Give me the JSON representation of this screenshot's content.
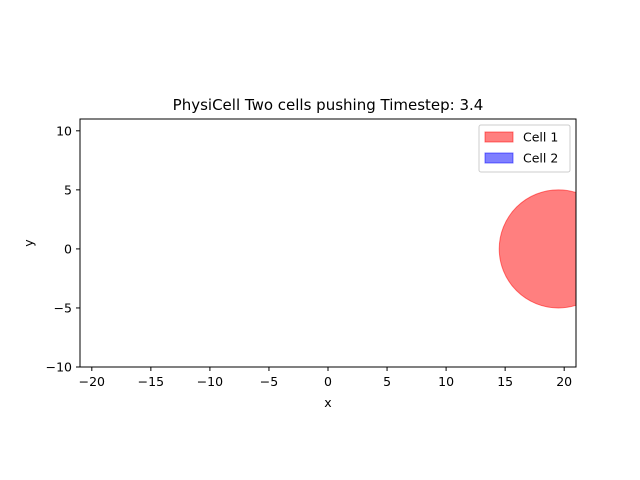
{
  "chart_data": {
    "type": "scatter",
    "title": "PhysiCell Two cells pushing Timestep: 3.4",
    "xlabel": "x",
    "ylabel": "y",
    "xlim": [
      -21,
      21
    ],
    "ylim": [
      -10,
      11
    ],
    "xticks": [
      -20,
      -15,
      -10,
      -5,
      0,
      5,
      10,
      15,
      20
    ],
    "yticks": [
      -10,
      -5,
      0,
      5,
      10
    ],
    "grid": false,
    "legend_position": "upper right",
    "series": [
      {
        "name": "Cell 1",
        "color": "#ff0000",
        "alpha": 0.5,
        "center": [
          19.5,
          0
        ],
        "radius": 5
      },
      {
        "name": "Cell 2",
        "color": "#0000ff",
        "alpha": 0.5,
        "center": [],
        "radius": 0
      }
    ]
  }
}
